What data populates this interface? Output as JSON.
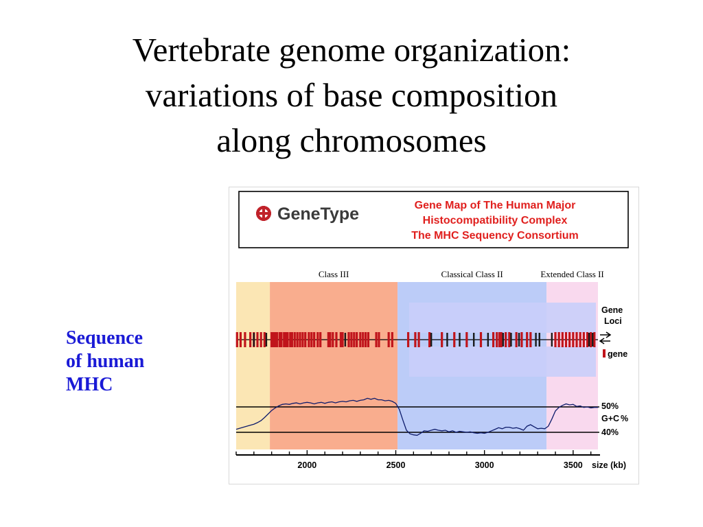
{
  "slide": {
    "title_lines": [
      "Vertebrate genome organization:",
      "variations of base composition",
      "along chromosomes"
    ],
    "side_label_lines": [
      "Sequence",
      "of human",
      "MHC"
    ]
  },
  "header": {
    "logo_text": "GeneType",
    "title_lines": [
      "Gene Map of The Human Major",
      "Histocompatibility Complex",
      "The MHC Sequency Consortium"
    ],
    "title_color": "#e0201e",
    "logo_color": "#3a3a3a",
    "logo_accent": "#c0222a"
  },
  "chart_data": {
    "type": "line",
    "xlabel": "size (kb)",
    "xlim": [
      1600,
      3640
    ],
    "xticks": [
      2000,
      2500,
      3000,
      3500
    ],
    "regions": [
      {
        "label": "",
        "start": 1600,
        "end": 1790,
        "color": "#fbe6b4"
      },
      {
        "label": "Class III",
        "start": 1790,
        "end": 2510,
        "color": "#f9ad8e"
      },
      {
        "label": "Classical Class II",
        "start": 2510,
        "end": 3350,
        "color": "#bcccf8"
      },
      {
        "label": "Extended Class II",
        "start": 3350,
        "end": 3640,
        "color": "#f9d9ee"
      }
    ],
    "gene_track": {
      "label_lines": [
        "Gene",
        "Loci"
      ],
      "legend": "gene",
      "gene_color": "#c0141b",
      "other_color": "#1a1a1a",
      "gene_positions": [
        1605,
        1625,
        1650,
        1680,
        1700,
        1720,
        1740,
        1760,
        1800,
        1810,
        1820,
        1830,
        1845,
        1855,
        1870,
        1880,
        1890,
        1905,
        1915,
        1930,
        1945,
        1960,
        1975,
        1990,
        2010,
        2025,
        2040,
        2060,
        2075,
        2120,
        2130,
        2145,
        2165,
        2190,
        2200,
        2235,
        2250,
        2265,
        2280,
        2300,
        2315,
        2330,
        2345,
        2390,
        2405,
        2460,
        2480,
        2570,
        2610,
        2630,
        2690,
        2760,
        2830,
        2900,
        2980,
        3050,
        3070,
        3085,
        3095,
        3120,
        3140,
        3180,
        3210,
        3240,
        3260,
        3400,
        3420,
        3440,
        3460,
        3480,
        3500,
        3520,
        3540,
        3560,
        3580,
        3600,
        3620
      ],
      "other_positions": [
        1700,
        1770,
        2215,
        2700,
        2790,
        2860,
        2940,
        3020,
        3105,
        3150,
        3195,
        3290,
        3310,
        3380,
        3590,
        3610
      ]
    },
    "gc_track": {
      "ylabel_lines": [
        "G+C",
        "%"
      ],
      "reference_lines": [
        {
          "value": 50,
          "label": "50%"
        },
        {
          "value": 40,
          "label": "40%"
        }
      ],
      "ylim": [
        37,
        54
      ],
      "x": [
        1600,
        1620,
        1640,
        1660,
        1680,
        1700,
        1720,
        1740,
        1760,
        1780,
        1800,
        1820,
        1840,
        1860,
        1880,
        1900,
        1920,
        1940,
        1960,
        1980,
        2000,
        2020,
        2040,
        2060,
        2080,
        2100,
        2120,
        2140,
        2160,
        2180,
        2200,
        2220,
        2240,
        2260,
        2280,
        2300,
        2320,
        2340,
        2360,
        2380,
        2400,
        2420,
        2440,
        2460,
        2480,
        2500,
        2520,
        2540,
        2560,
        2580,
        2600,
        2620,
        2640,
        2660,
        2680,
        2700,
        2720,
        2740,
        2760,
        2780,
        2800,
        2820,
        2840,
        2860,
        2880,
        2900,
        2920,
        2940,
        2960,
        2980,
        3000,
        3020,
        3040,
        3060,
        3080,
        3100,
        3120,
        3140,
        3160,
        3180,
        3200,
        3220,
        3240,
        3260,
        3280,
        3300,
        3320,
        3340,
        3360,
        3380,
        3400,
        3420,
        3440,
        3460,
        3480,
        3500,
        3520,
        3540,
        3560,
        3580,
        3600,
        3620,
        3640
      ],
      "y": [
        41.2,
        41.6,
        42.0,
        42.4,
        42.8,
        43.2,
        43.8,
        44.6,
        45.8,
        47.2,
        48.6,
        49.6,
        50.4,
        51.0,
        51.2,
        51.0,
        51.4,
        51.6,
        51.2,
        51.6,
        51.8,
        51.6,
        51.2,
        51.6,
        51.8,
        51.4,
        51.8,
        52.0,
        51.6,
        52.0,
        52.2,
        52.0,
        52.4,
        52.6,
        52.2,
        52.6,
        52.8,
        53.4,
        53.0,
        53.4,
        52.8,
        52.8,
        52.4,
        52.6,
        52.2,
        51.4,
        49.0,
        44.8,
        40.8,
        39.4,
        39.0,
        38.8,
        39.6,
        40.6,
        40.4,
        40.8,
        41.2,
        40.8,
        40.6,
        40.8,
        40.2,
        40.6,
        40.0,
        40.4,
        40.2,
        40.0,
        40.2,
        39.8,
        39.6,
        39.8,
        39.6,
        40.0,
        40.6,
        41.2,
        41.8,
        41.4,
        42.0,
        42.0,
        41.6,
        41.8,
        41.4,
        40.8,
        42.4,
        43.0,
        42.2,
        41.4,
        41.6,
        41.4,
        42.4,
        45.2,
        48.4,
        49.8,
        50.6,
        51.2,
        50.8,
        51.0,
        50.2,
        50.4,
        49.8,
        50.0,
        49.6,
        49.8,
        49.8
      ]
    }
  }
}
